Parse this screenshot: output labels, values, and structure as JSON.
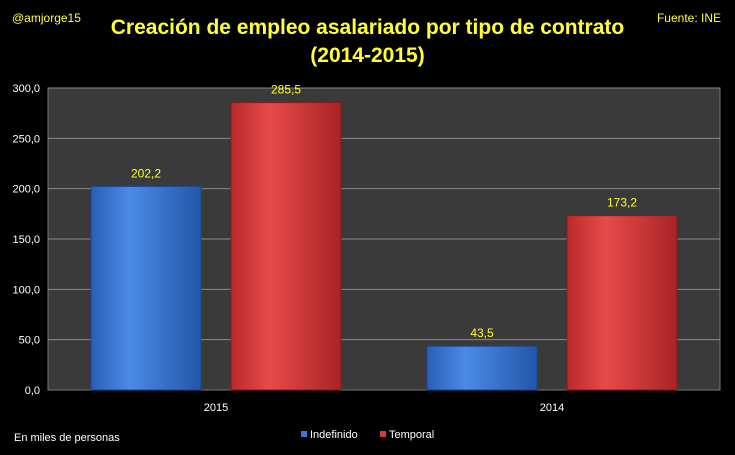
{
  "header": {
    "author": "@amjorge15",
    "source": "Fuente: INE"
  },
  "footnote": "En miles de personas",
  "colors": {
    "indefinido": "#3a78d8",
    "temporal": "#d83a3a",
    "title": "#ffff33",
    "plot_bg": "#3a3a3a"
  },
  "chart_data": {
    "type": "bar",
    "title": "Creación de empleo asalariado por tipo de contrato",
    "subtitle": "(2014-2015)",
    "categories": [
      "2015",
      "2014"
    ],
    "series": [
      {
        "name": "Indefinido",
        "values": [
          202.2,
          43.5
        ],
        "labels": [
          "202,2",
          "43,5"
        ]
      },
      {
        "name": "Temporal",
        "values": [
          285.5,
          173.2
        ],
        "labels": [
          "285,5",
          "173,2"
        ]
      }
    ],
    "ylim": [
      0,
      300
    ],
    "yticks": [
      0,
      50,
      100,
      150,
      200,
      250,
      300
    ],
    "ytick_labels": [
      "0,0",
      "50,0",
      "100,0",
      "150,0",
      "200,0",
      "250,0",
      "300,0"
    ],
    "grid": true,
    "legend": "bottom"
  }
}
